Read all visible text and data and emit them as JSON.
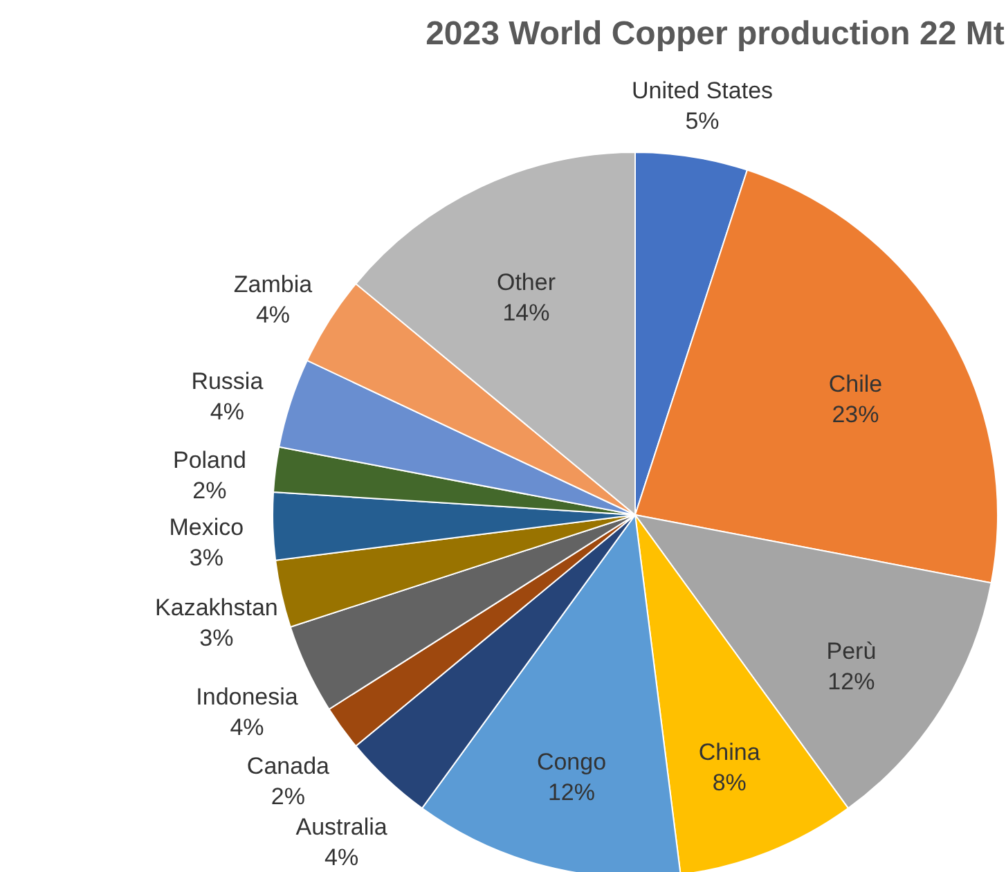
{
  "chart_data": {
    "type": "pie",
    "title": "2023 World Copper production 22 Mt",
    "categories": [
      "United States",
      "Chile",
      "Perù",
      "China",
      "Congo",
      "Australia",
      "Canada",
      "Indonesia",
      "Kazakhstan",
      "Mexico",
      "Poland",
      "Russia",
      "Zambia",
      "Other"
    ],
    "values": [
      5,
      23,
      12,
      8,
      12,
      4,
      2,
      4,
      3,
      3,
      2,
      4,
      4,
      14
    ],
    "value_labels": [
      "5%",
      "23%",
      "12%",
      "8%",
      "12%",
      "4%",
      "2%",
      "4%",
      "3%",
      "3%",
      "2%",
      "4%",
      "4%",
      "14%"
    ],
    "colors": [
      "#4472c4",
      "#ed7d31",
      "#a5a5a5",
      "#ffc000",
      "#5b9bd5",
      "#264478",
      "#9e480e",
      "#636363",
      "#997300",
      "#255e91",
      "#43682b",
      "#698ed0",
      "#f1975a",
      "#b7b7b7"
    ],
    "legend": false
  }
}
